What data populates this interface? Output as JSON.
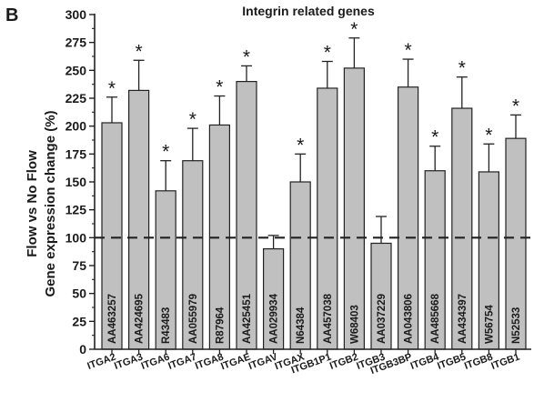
{
  "panel_label": "B",
  "chart_data": {
    "type": "bar",
    "title": "Integrin related genes",
    "ylabel_line1": "Flow vs No Flow",
    "ylabel_line2": "Gene expression change (%)",
    "xlabel": "",
    "ylim": [
      0,
      300
    ],
    "yticks": [
      0,
      25,
      50,
      75,
      100,
      125,
      150,
      175,
      200,
      225,
      250,
      275,
      300
    ],
    "reference_line": 100,
    "categories": [
      "ITGA2",
      "ITGA3",
      "ITGA6",
      "ITGA7",
      "ITGA8",
      "ITGAE",
      "ITGAV",
      "ITGAX",
      "ITGB1P1",
      "ITGB2",
      "ITGB3",
      "ITGB3BP",
      "ITGB4",
      "ITGB5",
      "ITGB8",
      "ITGB1"
    ],
    "accessions": [
      "AA463257",
      "AA424695",
      "R43483",
      "AA055979",
      "R87964",
      "AA425451",
      "AA029934",
      "N64384",
      "AA457038",
      "W68403",
      "AA037229",
      "AA043806",
      "AA485668",
      "AA434397",
      "W56754",
      "N52533"
    ],
    "values": [
      203,
      232,
      142,
      169,
      201,
      240,
      90,
      150,
      234,
      252,
      95,
      235,
      160,
      216,
      159,
      189
    ],
    "errors": [
      23,
      27,
      27,
      29,
      26,
      14,
      12,
      25,
      24,
      27,
      24,
      25,
      22,
      28,
      25,
      21
    ],
    "significant": [
      true,
      true,
      true,
      true,
      true,
      true,
      false,
      true,
      true,
      true,
      false,
      true,
      true,
      true,
      true,
      true
    ],
    "significance_marker": "*",
    "bar_color": "#c0c0c0",
    "grid": false
  }
}
